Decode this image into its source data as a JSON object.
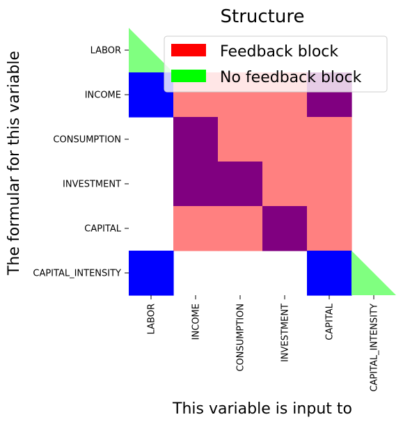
{
  "chart_data": {
    "type": "heatmap",
    "title": "Structure",
    "xlabel": "This variable is input to",
    "ylabel": "The formular for this variable",
    "variables": [
      "LABOR",
      "INCOME",
      "CONSUMPTION",
      "INVESTMENT",
      "CAPITAL",
      "CAPITAL_INTENSITY"
    ],
    "x_tick_labels": [
      "LABOR",
      "INCOME",
      "CONSUMPTION",
      "INVESTMENT",
      "CAPITAL",
      "CAPITAL_INTENSITY"
    ],
    "y_tick_labels": [
      "LABOR",
      "INCOME",
      "CONSUMPTION",
      "INVESTMENT",
      "CAPITAL",
      "CAPITAL_INTENSITY"
    ],
    "cell_states": {
      "0": "empty",
      "1": "adjacency outside feedback block",
      "2": "adjacency inside feedback block",
      "3": "feedback block, no adjacency"
    },
    "matrix": [
      [
        0,
        0,
        0,
        0,
        0,
        0
      ],
      [
        1,
        3,
        3,
        3,
        2,
        0
      ],
      [
        0,
        2,
        3,
        3,
        3,
        0
      ],
      [
        0,
        2,
        2,
        3,
        3,
        0
      ],
      [
        0,
        3,
        3,
        2,
        3,
        0
      ],
      [
        1,
        0,
        0,
        0,
        1,
        0
      ]
    ],
    "no_feedback_diagonal": [
      0,
      5
    ],
    "legend": {
      "placement": "top-right",
      "entries": [
        {
          "label": "Feedback block",
          "color": "#ff0000"
        },
        {
          "label": "No feedback block",
          "color": "#00ff00"
        }
      ]
    },
    "colors": {
      "adjacency": "#0000ff",
      "feedback_adjacency": "#800080",
      "feedback_fill": "#ff8080",
      "no_feedback_triangle": "#80ff80"
    },
    "grid": false
  }
}
